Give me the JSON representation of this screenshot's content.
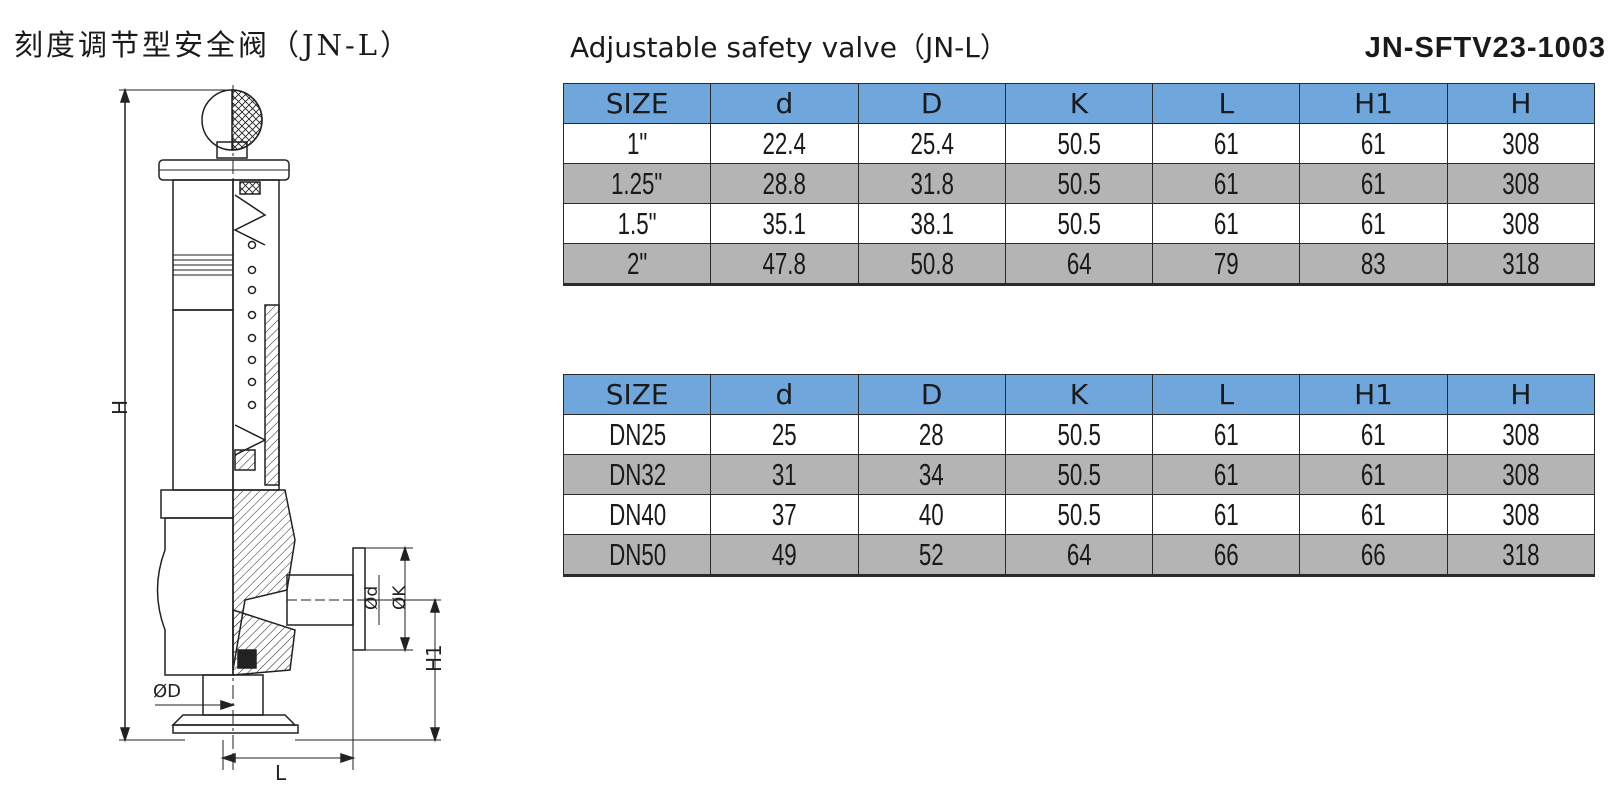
{
  "header": {
    "title_cn": "刻度调节型安全阀（JN-L）",
    "title_en": "Adjustable safety valve（JN-L）",
    "model_code": "JN-SFTV23-1003"
  },
  "drawing": {
    "labels": {
      "H": "H",
      "H1": "H1",
      "L": "L",
      "d": "Ød",
      "K": "ØK",
      "D": "ØD"
    }
  },
  "tables": [
    {
      "headers": [
        "SIZE",
        "d",
        "D",
        "K",
        "L",
        "H1",
        "H"
      ],
      "rows": [
        [
          "1\"",
          "22.4",
          "25.4",
          "50.5",
          "61",
          "61",
          "308"
        ],
        [
          "1.25\"",
          "28.8",
          "31.8",
          "50.5",
          "61",
          "61",
          "308"
        ],
        [
          "1.5\"",
          "35.1",
          "38.1",
          "50.5",
          "61",
          "61",
          "308"
        ],
        [
          "2\"",
          "47.8",
          "50.8",
          "64",
          "79",
          "83",
          "318"
        ]
      ]
    },
    {
      "headers": [
        "SIZE",
        "d",
        "D",
        "K",
        "L",
        "H1",
        "H"
      ],
      "rows": [
        [
          "DN25",
          "25",
          "28",
          "50.5",
          "61",
          "61",
          "308"
        ],
        [
          "DN32",
          "31",
          "34",
          "50.5",
          "61",
          "61",
          "308"
        ],
        [
          "DN40",
          "37",
          "40",
          "50.5",
          "61",
          "61",
          "308"
        ],
        [
          "DN50",
          "49",
          "52",
          "64",
          "66",
          "66",
          "318"
        ]
      ]
    }
  ],
  "colors": {
    "header_fill": "#6fa6db",
    "alt_row_fill": "#b4b4b4",
    "line": "#2a2a2a"
  }
}
